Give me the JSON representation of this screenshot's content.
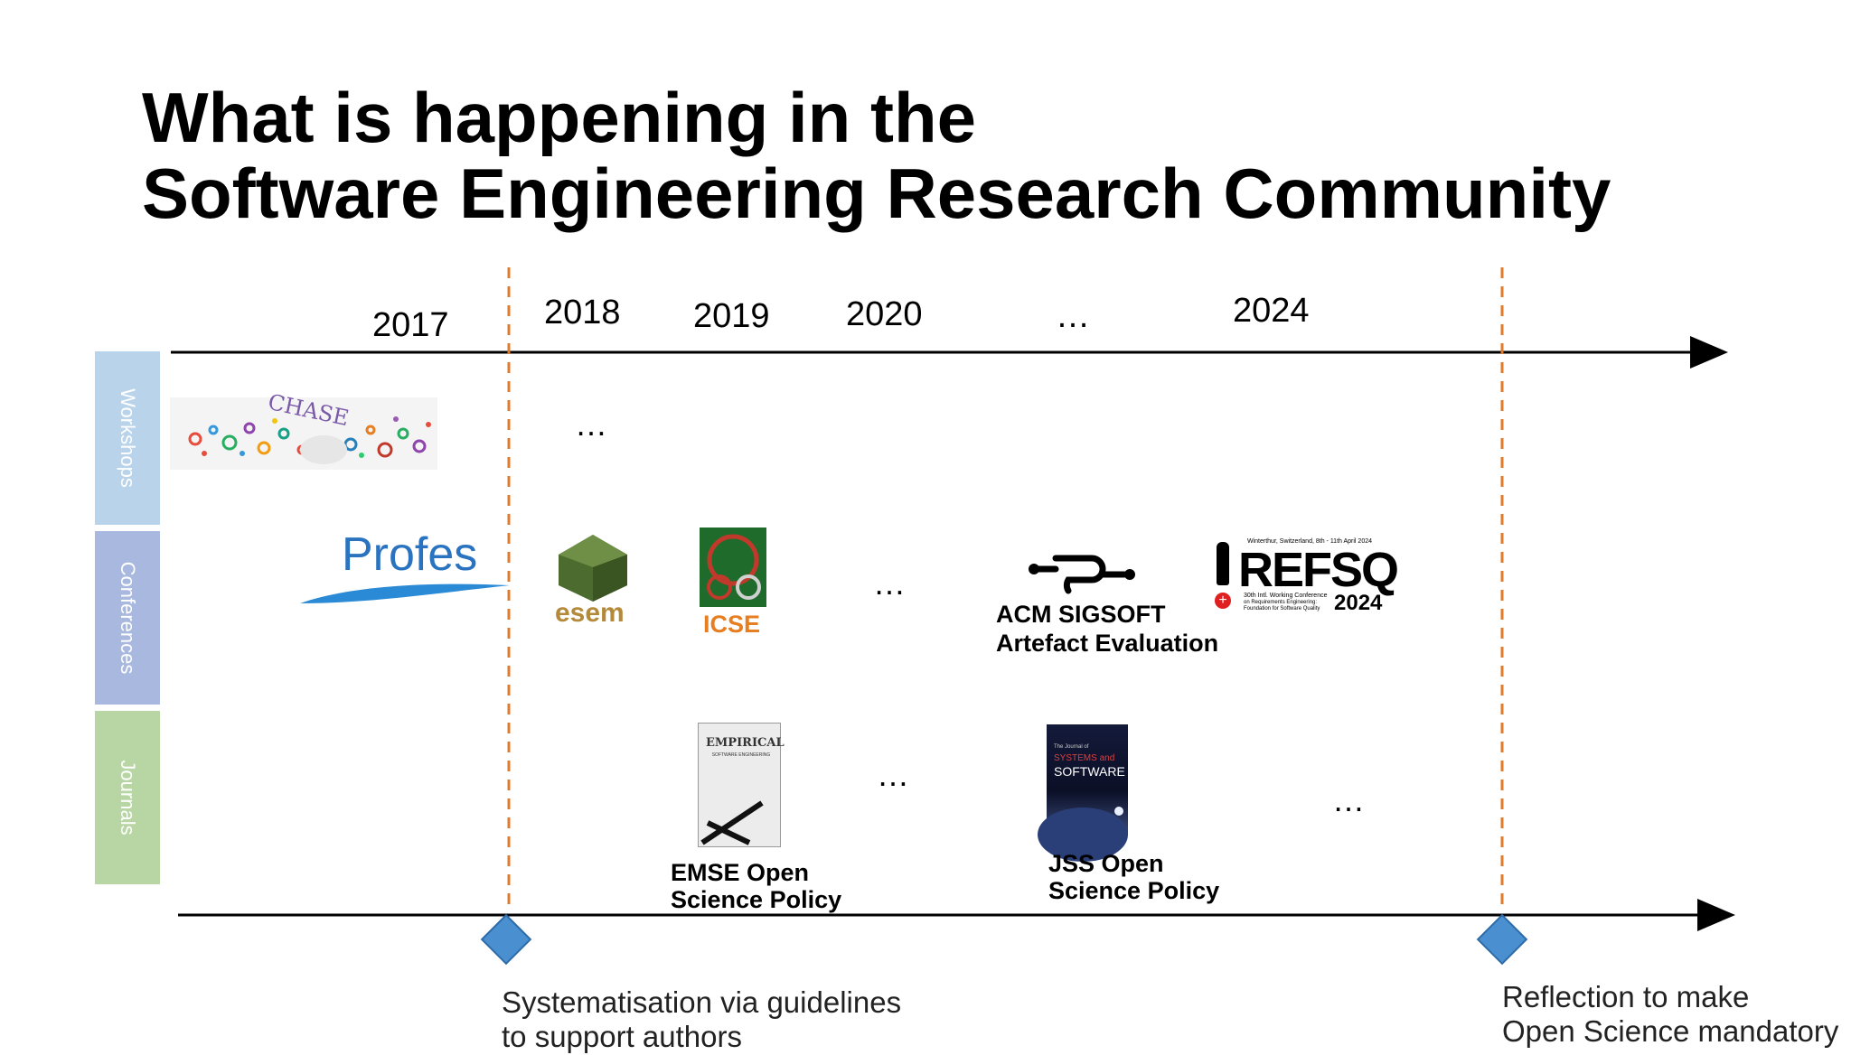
{
  "title": {
    "line1": "What is happening in the",
    "line2": "Software Engineering Research Community"
  },
  "years": [
    "2017",
    "2018",
    "2019",
    "2020",
    "…",
    "2024"
  ],
  "bands": {
    "workshops": "Workshops",
    "conferences": "Conferences",
    "journals": "Journals"
  },
  "band_colors": {
    "workshops": "#b9d3ea",
    "conferences": "#a8b8de",
    "journals": "#b7d6a3"
  },
  "ellipsis": "…",
  "logos": {
    "chase": "CHASE",
    "profes": "Profes",
    "esem": "esem",
    "icse": "ICSE",
    "refsq_brand": "REFSQ",
    "refsq_year": "2024",
    "refsq_tagline": "Winterthur, Switzerland, 8th - 11th April 2024",
    "refsq_subtitle1": "30th Intl. Working Conference",
    "refsq_subtitle2": "on Requirements Engineering:",
    "refsq_subtitle3": "Foundation for Software Quality",
    "emse_cover_title": "EMPIRICAL",
    "emse_cover_sub": "SOFTWARE ENGINEERING",
    "jss_cover_line1": "The Journal of",
    "jss_cover_line2": "SYSTEMS and",
    "jss_cover_line3": "SOFTWARE"
  },
  "labels": {
    "acm_line1": "ACM SIGSOFT",
    "acm_line2": "Artefact Evaluation",
    "emse_line1": "EMSE Open",
    "emse_line2": "Science Policy",
    "jss_line1": "JSS Open",
    "jss_line2": "Science Policy"
  },
  "milestones": {
    "left_line1": "Systematisation via guidelines",
    "left_line2": "to support authors",
    "right_line1": "Reflection to make",
    "right_line2": "Open Science mandatory"
  },
  "colors": {
    "dashed_line": "#e07b2c",
    "diamond": "#4a8fd0",
    "profes_blue": "#2a73c0",
    "icse_orange": "#e67e22",
    "esem_green": "#4c6b2e"
  }
}
